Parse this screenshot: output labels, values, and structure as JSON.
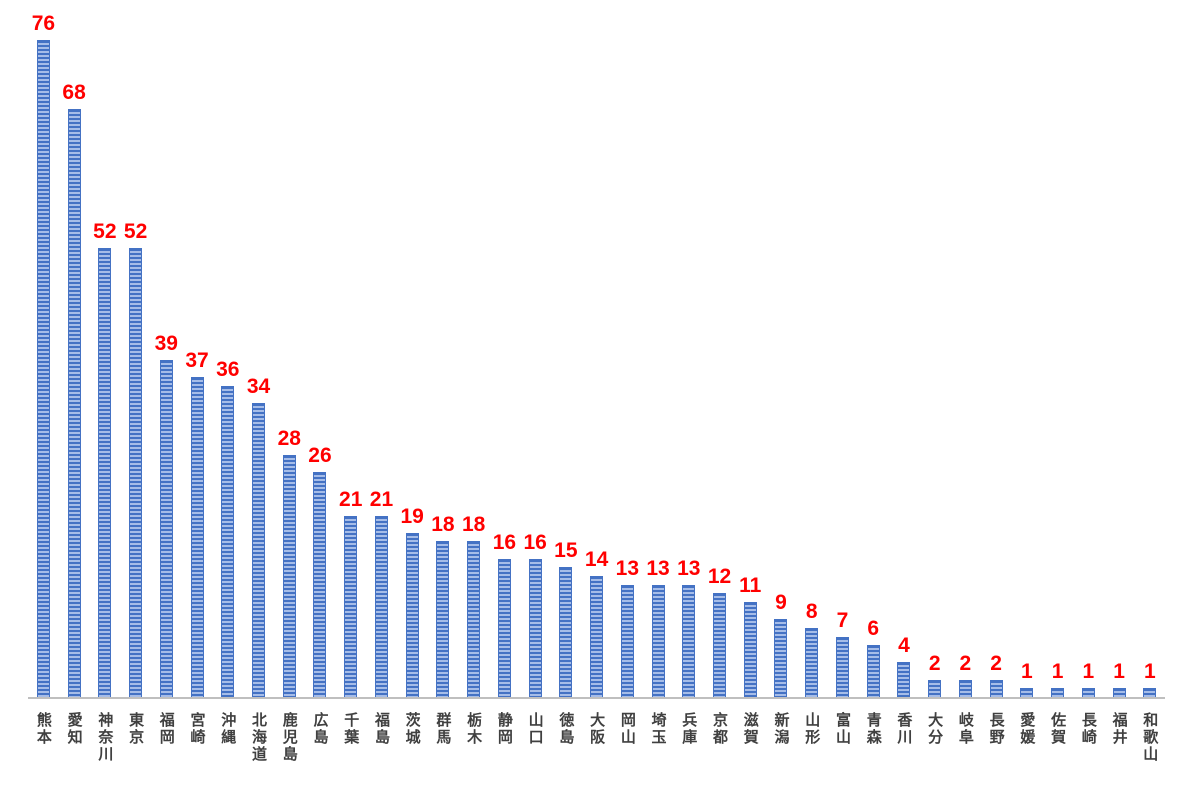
{
  "chart_data": {
    "type": "bar",
    "title": "",
    "xlabel": "",
    "ylabel": "",
    "categories": [
      "熊本",
      "愛知",
      "神奈川",
      "東京",
      "福岡",
      "宮崎",
      "沖縄",
      "北海道",
      "鹿児島",
      "広島",
      "千葉",
      "福島",
      "茨城",
      "群馬",
      "栃木",
      "静岡",
      "山口",
      "徳島",
      "大阪",
      "岡山",
      "埼玉",
      "兵庫",
      "京都",
      "滋賀",
      "新潟",
      "山形",
      "富山",
      "青森",
      "香川",
      "大分",
      "岐阜",
      "長野",
      "愛媛",
      "佐賀",
      "長崎",
      "福井",
      "和歌山"
    ],
    "values": [
      76,
      68,
      52,
      52,
      39,
      37,
      36,
      34,
      28,
      26,
      21,
      21,
      19,
      18,
      18,
      16,
      16,
      15,
      14,
      13,
      13,
      13,
      12,
      11,
      9,
      8,
      7,
      6,
      4,
      2,
      2,
      2,
      1,
      1,
      1,
      1,
      1
    ],
    "ylim": [
      0,
      80
    ],
    "grid": false,
    "legend": "none",
    "data_labels": "above-bars"
  },
  "colors": {
    "bar_dark": "#4472C4",
    "bar_light_stripe": "#A6BDE8",
    "value_label": "#FF0000",
    "axis_line": "#BFBFBF",
    "category_label": "#404040"
  }
}
